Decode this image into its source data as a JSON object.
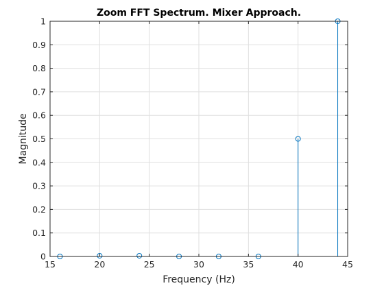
{
  "chart_data": {
    "type": "stem",
    "title": "Zoom FFT Spectrum. Mixer Approach.",
    "xlabel": "Frequency (Hz)",
    "ylabel": "Magnitude",
    "xlim": [
      15,
      45
    ],
    "ylim": [
      0,
      1
    ],
    "xticks": [
      15,
      20,
      25,
      30,
      35,
      40,
      45
    ],
    "yticks": [
      0,
      0.1,
      0.2,
      0.3,
      0.4,
      0.5,
      0.6,
      0.7,
      0.8,
      0.9,
      1
    ],
    "grid": true,
    "series": [
      {
        "color": "#0072bd",
        "marker": "circle",
        "x": [
          16,
          20,
          24,
          28,
          32,
          36,
          40,
          44
        ],
        "y": [
          0.0,
          0.003,
          0.003,
          0.0,
          0.0,
          0.0,
          0.5,
          1.0
        ]
      }
    ]
  }
}
